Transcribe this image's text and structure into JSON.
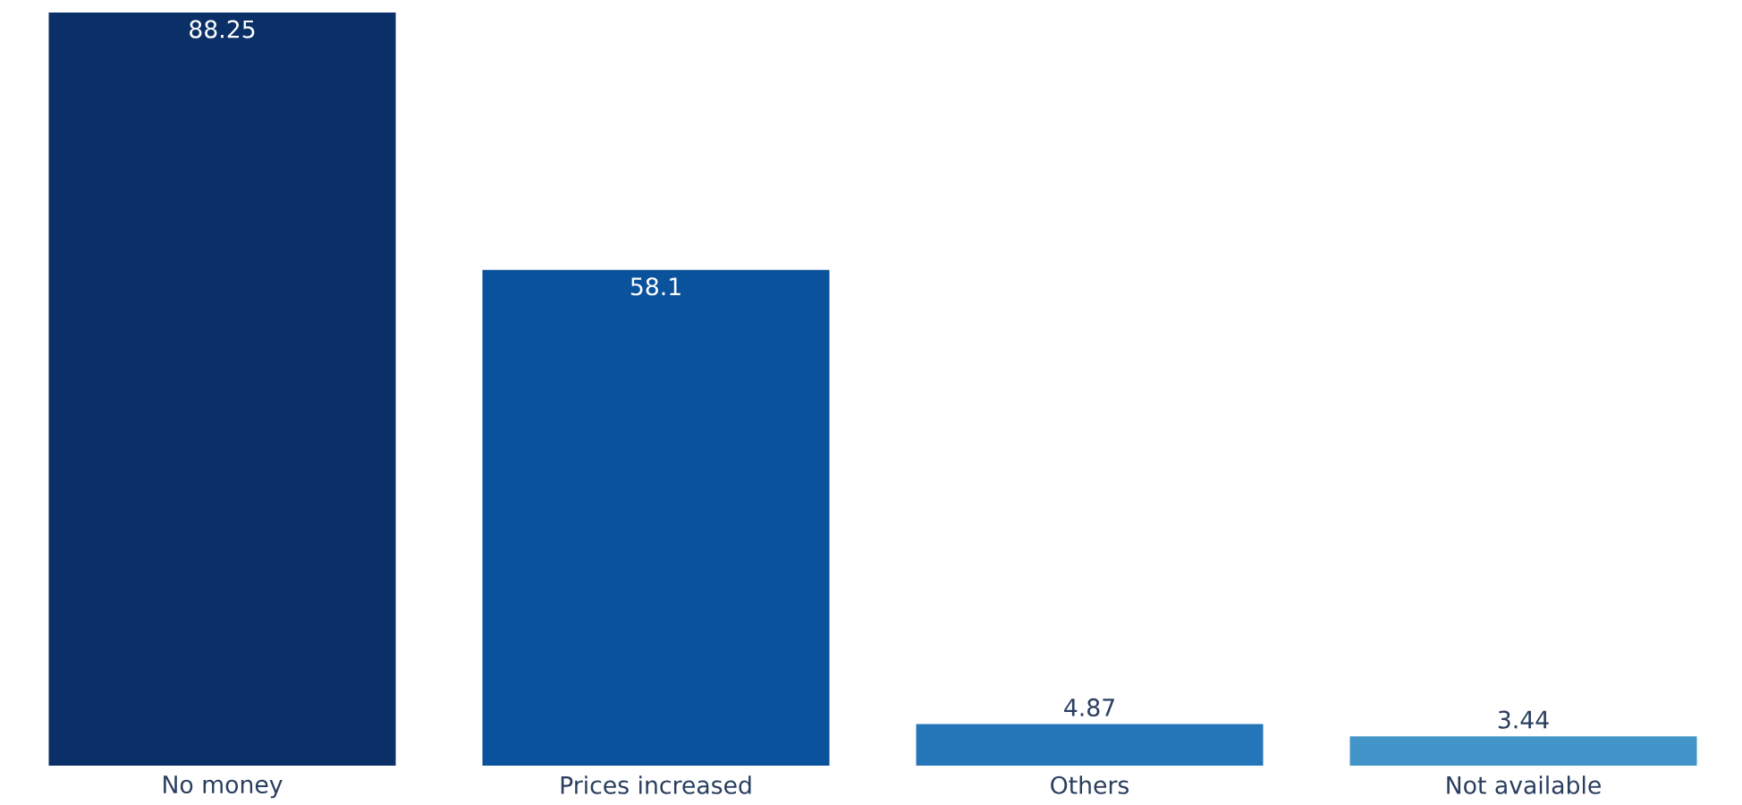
{
  "chart_data": {
    "type": "bar",
    "categories": [
      "No money",
      "Prices increased",
      "Others",
      "Not available"
    ],
    "values": [
      88.25,
      58.1,
      4.87,
      3.44
    ],
    "colors": [
      "#0b3068",
      "#0b529c",
      "#2576b9",
      "#4394c9"
    ],
    "data_labels": true
  }
}
